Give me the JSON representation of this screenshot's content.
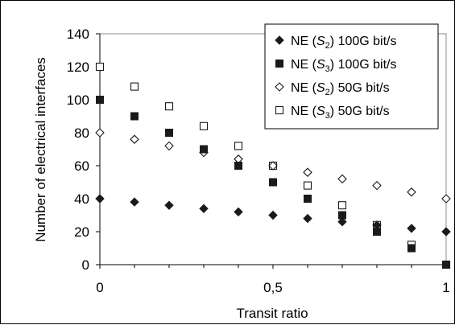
{
  "chart_data": {
    "type": "scatter",
    "xlabel": "Transit ratio",
    "ylabel": "Number of electrical interfaces",
    "xlim": [
      0,
      1
    ],
    "ylim": [
      0,
      140
    ],
    "x_ticks": [
      "0",
      "0,5",
      "1"
    ],
    "y_ticks": [
      "0",
      "20",
      "40",
      "60",
      "80",
      "100",
      "120",
      "140"
    ],
    "grid": false,
    "legend_position": "top-right",
    "x": [
      0,
      0.1,
      0.2,
      0.3,
      0.4,
      0.5,
      0.6,
      0.7,
      0.8,
      0.9,
      1.0
    ],
    "series": [
      {
        "legend_prefix": "NE (",
        "legend_sym": "S",
        "legend_sub": "2",
        "legend_suffix": ")  100G bit/s",
        "marker": "diamond-filled",
        "color": "#1a1a1a",
        "values": [
          40,
          38,
          36,
          34,
          32,
          30,
          28,
          26,
          24,
          22,
          20
        ]
      },
      {
        "legend_prefix": "NE (",
        "legend_sym": "S",
        "legend_sub": "3",
        "legend_suffix": ")  100G bit/s",
        "marker": "square-filled",
        "color": "#1a1a1a",
        "values": [
          100,
          90,
          80,
          70,
          60,
          50,
          40,
          30,
          20,
          10,
          0
        ]
      },
      {
        "legend_prefix": "NE (",
        "legend_sym": "S",
        "legend_sub": "2",
        "legend_suffix": ")  50G bit/s",
        "marker": "diamond-open",
        "color": "#1a1a1a",
        "values": [
          80,
          76,
          72,
          68,
          64,
          60,
          56,
          52,
          48,
          44,
          40
        ]
      },
      {
        "legend_prefix": "NE (",
        "legend_sym": "S",
        "legend_sub": "3",
        "legend_suffix": ")  50G bit/s",
        "marker": "square-open",
        "color": "#1a1a1a",
        "values": [
          120,
          108,
          96,
          84,
          72,
          60,
          48,
          36,
          24,
          12,
          0
        ]
      }
    ]
  }
}
